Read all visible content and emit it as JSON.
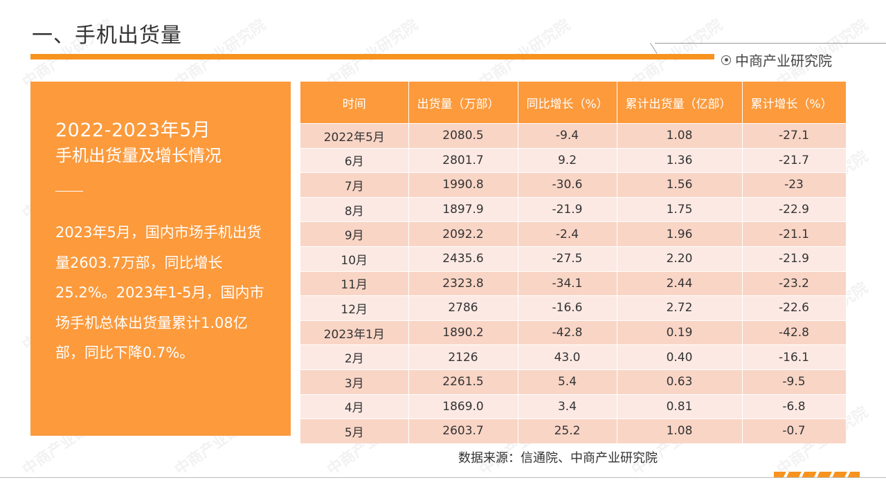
{
  "page_title": "一、手机出货量",
  "brand": "中商产业研究院",
  "panel": {
    "title_line1": "2022-2023年5月",
    "title_line2": "手机出货量及增长情况",
    "body": "2023年5月，国内市场手机出货量2603.7万部，同比增长25.2%。2023年1-5月，国内市场手机总体出货量累计1.08亿部，同比下降0.7%。"
  },
  "table": {
    "headers": [
      "时间",
      "出货量（万部）",
      "同比增长（%）",
      "累计出货量（亿部）",
      "累计增长（%）"
    ],
    "rows": [
      [
        "2022年5月",
        "2080.5",
        "-9.4",
        "1.08",
        "-27.1"
      ],
      [
        "6月",
        "2801.7",
        "9.2",
        "1.36",
        "-21.7"
      ],
      [
        "7月",
        "1990.8",
        "-30.6",
        "1.56",
        "-23"
      ],
      [
        "8月",
        "1897.9",
        "-21.9",
        "1.75",
        "-22.9"
      ],
      [
        "9月",
        "2092.2",
        "-2.4",
        "1.96",
        "-21.1"
      ],
      [
        "10月",
        "2435.6",
        "-27.5",
        "2.20",
        "-21.9"
      ],
      [
        "11月",
        "2323.8",
        "-34.1",
        "2.44",
        "-23.2"
      ],
      [
        "12月",
        "2786",
        "-16.6",
        "2.72",
        "-22.6"
      ],
      [
        "2023年1月",
        "1890.2",
        "-42.8",
        "0.19",
        "-42.8"
      ],
      [
        "2月",
        "2126",
        "43.0",
        "0.40",
        "-16.1"
      ],
      [
        "3月",
        "2261.5",
        "5.4",
        "0.63",
        "-9.5"
      ],
      [
        "4月",
        "1869.0",
        "3.4",
        "0.81",
        "-6.8"
      ],
      [
        "5月",
        "2603.7",
        "25.2",
        "1.08",
        "-0.7"
      ]
    ]
  },
  "source": "数据来源：信通院、中商产业研究院",
  "watermark": "中商产业研究院",
  "colors": {
    "accent": "#fc9a3c",
    "row_dark": "#f9d5c6",
    "row_light": "#fce9e3"
  }
}
